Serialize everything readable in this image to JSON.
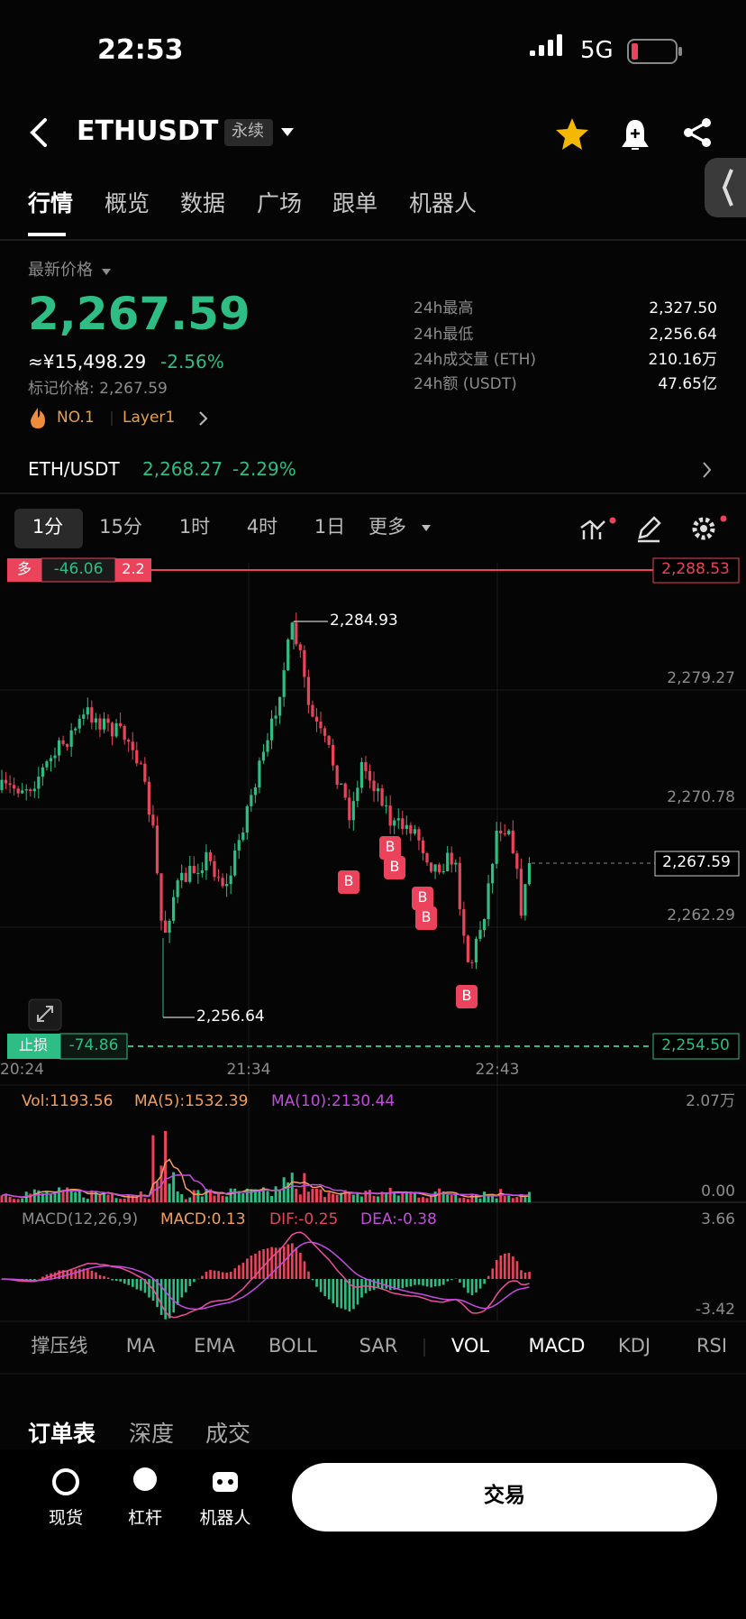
{
  "status_bar": {
    "time": "22:53",
    "network": "5G"
  },
  "header": {
    "symbol": "ETHUSDT",
    "tag": "永续"
  },
  "tabs": [
    "行情",
    "概览",
    "数据",
    "广场",
    "跟单",
    "机器人"
  ],
  "price": {
    "label": "最新价格",
    "last": "2,267.59",
    "cny": "≈¥15,498.29",
    "change": "-2.56%",
    "mark_price": "标记价格: 2,267.59",
    "rank": "NO.1",
    "sector": "Layer1"
  },
  "stats": [
    {
      "label": "24h最高",
      "value": "2,327.50"
    },
    {
      "label": "24h最低",
      "value": "2,256.64"
    },
    {
      "label": "24h成交量 (ETH)",
      "value": "210.16万"
    },
    {
      "label": "24h额 (USDT)",
      "value": "47.65亿"
    }
  ],
  "spot": {
    "pair": "ETH/USDT",
    "price": "2,268.27",
    "change": "-2.29%"
  },
  "timeframes": [
    "1分",
    "15分",
    "1时",
    "4时",
    "1日",
    "更多"
  ],
  "chart": {
    "position": {
      "side": "多",
      "pnl": "-46.06",
      "leverage": "2.2",
      "price": "2,288.53"
    },
    "price_labels": [
      "2,279.27",
      "2,270.78",
      "2,262.29"
    ],
    "current_price": "2,267.59",
    "high": "2,284.93",
    "low": "2,256.64",
    "stop": {
      "label": "止损",
      "pnl": "-74.86",
      "price": "2,254.50"
    },
    "times": [
      "20:24",
      "21:34",
      "22:43"
    ],
    "buy_markers": [
      "B",
      "B",
      "B",
      "B",
      "B",
      "B"
    ]
  },
  "volume": {
    "vol": "Vol:1193.56",
    "ma5": "MA(5):1532.39",
    "ma10": "MA(10):2130.44",
    "max": "2.07万",
    "min": "0.00"
  },
  "macd": {
    "title": "MACD(12,26,9)",
    "macd": "MACD:0.13",
    "dif": "DIF:-0.25",
    "dea": "DEA:-0.38",
    "max": "3.66",
    "min": "-3.42"
  },
  "indicators": [
    "撑压线",
    "MA",
    "EMA",
    "BOLL",
    "SAR",
    "VOL",
    "MACD",
    "KDJ",
    "RSI"
  ],
  "order_tabs": [
    "订单表",
    "深度",
    "成交"
  ],
  "nav": [
    "现货",
    "杠杆",
    "机器人"
  ],
  "trade_button": "交易"
}
